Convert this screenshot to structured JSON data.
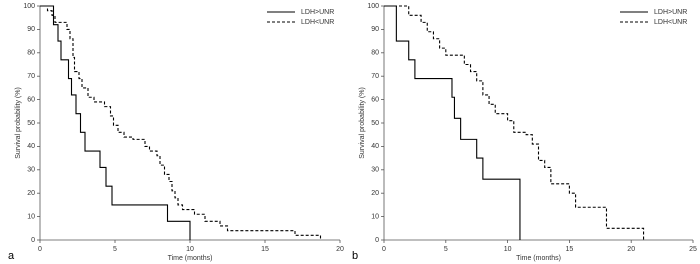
{
  "chart_data": [
    {
      "type": "line",
      "step": "post",
      "panel_label": "a",
      "xlabel": "Time (months)",
      "ylabel": "Survival probability (%)",
      "xlim": [
        0,
        20
      ],
      "xticks": [
        0,
        5,
        10,
        15,
        20
      ],
      "ylim": [
        0,
        100
      ],
      "yticks": [
        0,
        10,
        20,
        30,
        40,
        50,
        60,
        70,
        80,
        90,
        100
      ],
      "legend": "upper right",
      "series": [
        {
          "name": "LDH>UNR",
          "color": "#000000",
          "linestyle": "solid",
          "x": [
            0,
            0.9,
            1.2,
            1.4,
            1.9,
            2.1,
            2.4,
            2.7,
            3,
            4,
            4.4,
            4.8,
            8.5,
            10
          ],
          "values": [
            100,
            92,
            85,
            77,
            69,
            62,
            54,
            46,
            38,
            31,
            23,
            15,
            8,
            0
          ]
        },
        {
          "name": "LDH<UNR",
          "color": "#000000",
          "linestyle": "dashed",
          "x": [
            0,
            0.5,
            0.8,
            1,
            1.8,
            2,
            2.2,
            2.3,
            2.6,
            2.8,
            3.2,
            3.6,
            4.3,
            4.7,
            4.9,
            5.2,
            5.6,
            6.2,
            7,
            7.3,
            7.8,
            8,
            8.3,
            8.6,
            8.8,
            9,
            9.2,
            9.5,
            10.3,
            11,
            12,
            12.5,
            17,
            18.7
          ],
          "values": [
            100,
            98,
            96,
            93,
            90,
            86,
            78,
            72,
            69,
            65,
            61,
            59,
            57,
            53,
            49,
            46,
            44,
            43,
            40,
            38,
            36,
            32,
            28,
            25,
            21,
            18,
            15,
            13,
            11,
            8,
            6,
            4,
            2,
            0
          ]
        }
      ]
    },
    {
      "type": "line",
      "step": "post",
      "panel_label": "b",
      "xlabel": "Time (months)",
      "ylabel": "Survival probability (%)",
      "xlim": [
        0,
        25
      ],
      "xticks": [
        0,
        5,
        10,
        15,
        20,
        25
      ],
      "ylim": [
        0,
        100
      ],
      "yticks": [
        0,
        10,
        20,
        30,
        40,
        50,
        60,
        70,
        80,
        90,
        100
      ],
      "legend": "upper right",
      "series": [
        {
          "name": "LDH>UNR",
          "color": "#000000",
          "linestyle": "solid",
          "x": [
            0,
            1,
            2,
            2.5,
            5.5,
            5.7,
            6.2,
            7.5,
            8,
            11
          ],
          "values": [
            100,
            85,
            77,
            69,
            61,
            52,
            43,
            35,
            26,
            0
          ]
        },
        {
          "name": "LDH<UNR",
          "color": "#000000",
          "linestyle": "dashed",
          "x": [
            0,
            2,
            3,
            3.5,
            4,
            4.5,
            5,
            6.5,
            7,
            7.5,
            8,
            8.5,
            9,
            10,
            10.5,
            11.5,
            12,
            12.5,
            13,
            13.5,
            15,
            15.5,
            18,
            21
          ],
          "values": [
            100,
            96,
            93,
            89,
            86,
            82,
            79,
            75,
            72,
            68,
            62,
            58,
            54,
            51,
            46,
            45,
            41,
            34,
            31,
            24,
            20,
            14,
            5,
            0
          ]
        }
      ]
    }
  ]
}
